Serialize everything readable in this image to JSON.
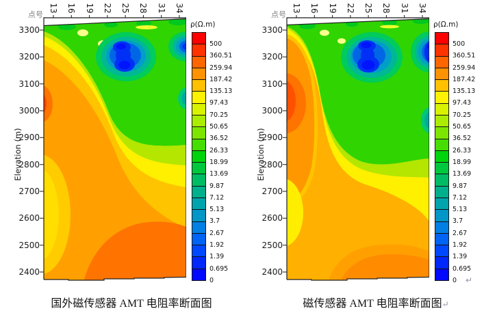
{
  "colorbar": {
    "title": "ρ(Ω.m)",
    "labels": [
      "500",
      "360.51",
      "259.94",
      "187.42",
      "135.13",
      "97.43",
      "70.25",
      "50.65",
      "36.52",
      "26.33",
      "18.99",
      "13.69",
      "9.87",
      "7.12",
      "5.13",
      "3.7",
      "2.67",
      "1.92",
      "1.39",
      "0.695",
      "0"
    ],
    "cell_colors": [
      "#FE0000",
      "#FF3300",
      "#FF6600",
      "#FF9200",
      "#FFC100",
      "#FFF200",
      "#D8F200",
      "#ABEC00",
      "#7CE600",
      "#46DE00",
      "#00D40C",
      "#00C83C",
      "#00BC64",
      "#00B08C",
      "#00A4AC",
      "#0096C8",
      "#0080E4",
      "#0064F4",
      "#0048FE",
      "#0028FE",
      "#0008FE"
    ]
  },
  "plots": {
    "left": {
      "x_axis_label": "点号",
      "x_ticks": [
        "13",
        "16",
        "19",
        "22",
        "25",
        "28",
        "31",
        "34"
      ],
      "y_axis_label": "Elevation (m)",
      "y_ticks": [
        "3300",
        "3200",
        "3100",
        "3000",
        "2900",
        "2800",
        "2700",
        "2600",
        "2500",
        "2400"
      ],
      "caption": "国外磁传感器 AMT 电阻率断面图"
    },
    "right": {
      "x_axis_label": "点号",
      "x_ticks": [
        "13",
        "16",
        "19",
        "22",
        "25",
        "28",
        "31",
        "34"
      ],
      "y_axis_label": "Elevation (m)",
      "y_ticks": [
        "3300",
        "3200",
        "3100",
        "3000",
        "2900",
        "2800",
        "2700",
        "2600",
        "2500",
        "2400"
      ],
      "caption": "磁传感器 AMT 电阻率断面图",
      "caption_return_mark": "↵"
    },
    "figure_return_mark": "↵"
  },
  "chart_data": [
    {
      "type": "heatmap",
      "title": "国外磁传感器 AMT 电阻率断面图",
      "xlabel": "点号",
      "ylabel": "Elevation (m)",
      "x_ticks": [
        13,
        16,
        19,
        22,
        25,
        28,
        31,
        34
      ],
      "y_ticks": [
        3300,
        3200,
        3100,
        3000,
        2900,
        2800,
        2700,
        2600,
        2500,
        2400
      ],
      "xlim": [
        13,
        34
      ],
      "ylim": [
        2380,
        3310
      ],
      "legend_title": "ρ(Ω.m)",
      "legend_position": "right",
      "grid": false,
      "color_scale_levels_ohm_m": [
        0,
        0.695,
        1.39,
        1.92,
        2.67,
        3.7,
        5.13,
        7.12,
        9.87,
        13.69,
        18.99,
        26.33,
        36.52,
        50.65,
        70.25,
        97.43,
        135.13,
        187.42,
        259.94,
        360.51,
        500
      ],
      "color_scale_order": "blue(low) to red(high)",
      "features": [
        {
          "zone": "conductive anomaly (blue, <5 Ω.m)",
          "stations": "24–28",
          "elevation_m": "3130–3260"
        },
        {
          "zone": "conductive anomaly at right edge (blue)",
          "stations": "33–34",
          "elevation_m": "3180–3270"
        },
        {
          "zone": "small conductive patch right edge (teal)",
          "stations": "34",
          "elevation_m": "3000–3060"
        },
        {
          "zone": "moderate zone (green, 20–70 Ω.m)",
          "stations": "19–34",
          "elevation_m": "3000–3300"
        },
        {
          "zone": "resistive flank (orange, 135–260 Ω.m)",
          "stations": "13–20",
          "elevation_m": "2400–3200"
        },
        {
          "zone": "strong resistor (red-orange, >260 Ω.m)",
          "stations": "13",
          "elevation_m": "2900–3000"
        },
        {
          "zone": "strong resistor (deep orange)",
          "stations": "20–34",
          "elevation_m": "2380–2620"
        },
        {
          "zone": "gold/yellow lobe (100–190 Ω.m)",
          "stations": "13–16",
          "elevation_m": "2450–2850"
        }
      ]
    },
    {
      "type": "heatmap",
      "title": "磁传感器 AMT 电阻率断面图",
      "xlabel": "点号",
      "ylabel": "Elevation (m)",
      "x_ticks": [
        13,
        16,
        19,
        22,
        25,
        28,
        31,
        34
      ],
      "y_ticks": [
        3300,
        3200,
        3100,
        3000,
        2900,
        2800,
        2700,
        2600,
        2500,
        2400
      ],
      "xlim": [
        13,
        34
      ],
      "ylim": [
        2380,
        3310
      ],
      "legend_title": "ρ(Ω.m)",
      "legend_position": "right",
      "grid": false,
      "color_scale_levels_ohm_m": [
        0,
        0.695,
        1.39,
        1.92,
        2.67,
        3.7,
        5.13,
        7.12,
        9.87,
        13.69,
        18.99,
        26.33,
        36.52,
        50.65,
        70.25,
        97.43,
        135.13,
        187.42,
        259.94,
        360.51,
        500
      ],
      "color_scale_order": "blue(low) to red(high)",
      "features": [
        {
          "zone": "conductive anomaly (blue, <5 Ω.m)",
          "stations": "24–28",
          "elevation_m": "3120–3260"
        },
        {
          "zone": "conductive anomaly at right edge (blue)",
          "stations": "33–34",
          "elevation_m": "3150–3270"
        },
        {
          "zone": "conductive patch right edge (teal)",
          "stations": "34",
          "elevation_m": "2950–3050"
        },
        {
          "zone": "moderate zone (green, 20–70 Ω.m)",
          "stations": "20–34",
          "elevation_m": "2950–3300"
        },
        {
          "zone": "resistive column (orange)",
          "stations": "13–17",
          "elevation_m": "2700–3250"
        },
        {
          "zone": "strong resistor core (deep orange, >260 Ω.m)",
          "stations": "13–15",
          "elevation_m": "2950–3150"
        },
        {
          "zone": "yellow band (100–135 Ω.m)",
          "stations": "17–20 widening downward",
          "elevation_m": "2550–3250"
        },
        {
          "zone": "amber floor (135–190 Ω.m)",
          "stations": "13–34",
          "elevation_m": "2400–2750"
        },
        {
          "zone": "deep orange blob at bottom",
          "stations": "22–34",
          "elevation_m": "2380–2480"
        }
      ]
    }
  ]
}
